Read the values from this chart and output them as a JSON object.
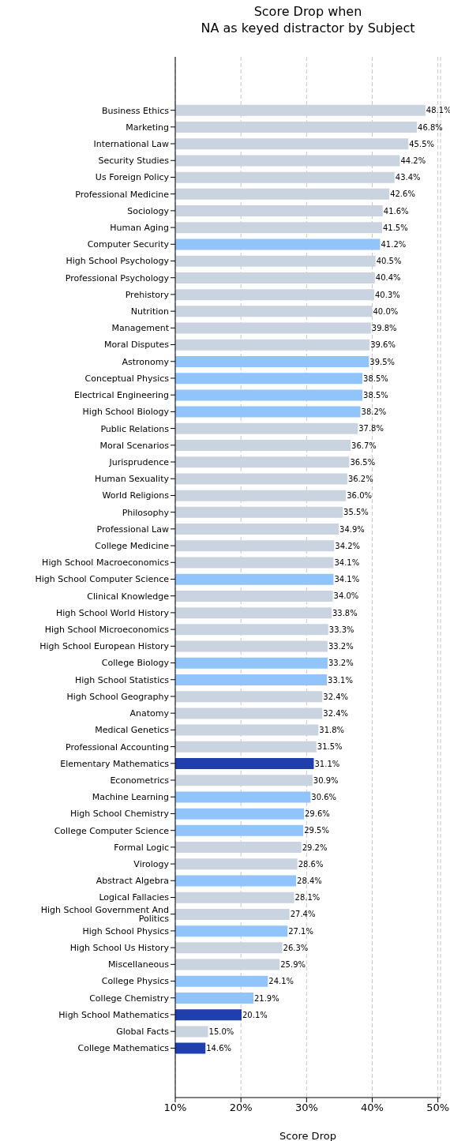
{
  "chart_data": {
    "type": "bar",
    "orientation": "horizontal",
    "title": "Score Drop when\nNA as keyed distractor by Subject",
    "xlabel": "Score Drop",
    "categories": [
      "Business Ethics",
      "Marketing",
      "International Law",
      "Security Studies",
      "Us Foreign Policy",
      "Professional Medicine",
      "Sociology",
      "Human Aging",
      "Computer Security",
      "High School Psychology",
      "Professional Psychology",
      "Prehistory",
      "Nutrition",
      "Management",
      "Moral Disputes",
      "Astronomy",
      "Conceptual Physics",
      "Electrical Engineering",
      "High School Biology",
      "Public Relations",
      "Moral Scenarios",
      "Jurisprudence",
      "Human Sexuality",
      "World Religions",
      "Philosophy",
      "Professional Law",
      "College Medicine",
      "High School Macroeconomics",
      "High School Computer Science",
      "Clinical Knowledge",
      "High School World History",
      "High School Microeconomics",
      "High School European History",
      "College Biology",
      "High School Statistics",
      "High School Geography",
      "Anatomy",
      "Medical Genetics",
      "Professional Accounting",
      "Elementary Mathematics",
      "Econometrics",
      "Machine Learning",
      "High School Chemistry",
      "College Computer Science",
      "Formal Logic",
      "Virology",
      "Abstract Algebra",
      "Logical Fallacies",
      "High School Government And Politics",
      "High School Physics",
      "High School Us History",
      "Miscellaneous",
      "College Physics",
      "College Chemistry",
      "High School Mathematics",
      "Global Facts",
      "College Mathematics"
    ],
    "values": [
      48.1,
      46.8,
      45.5,
      44.2,
      43.4,
      42.6,
      41.6,
      41.5,
      41.2,
      40.5,
      40.4,
      40.3,
      40.0,
      39.8,
      39.6,
      39.5,
      38.5,
      38.5,
      38.2,
      37.8,
      36.7,
      36.5,
      36.2,
      36.0,
      35.5,
      34.9,
      34.2,
      34.1,
      34.1,
      34.0,
      33.8,
      33.3,
      33.2,
      33.2,
      33.1,
      32.4,
      32.4,
      31.8,
      31.5,
      31.1,
      30.9,
      30.6,
      29.6,
      29.5,
      29.2,
      28.6,
      28.4,
      28.1,
      27.4,
      27.1,
      26.3,
      25.9,
      24.1,
      21.9,
      20.1,
      15.0,
      14.6
    ],
    "value_labels": [
      "48.1%",
      "46.8%",
      "45.5%",
      "44.2%",
      "43.4%",
      "42.6%",
      "41.6%",
      "41.5%",
      "41.2%",
      "40.5%",
      "40.4%",
      "40.3%",
      "40.0%",
      "39.8%",
      "39.6%",
      "39.5%",
      "38.5%",
      "38.5%",
      "38.2%",
      "37.8%",
      "36.7%",
      "36.5%",
      "36.2%",
      "36.0%",
      "35.5%",
      "34.9%",
      "34.2%",
      "34.1%",
      "34.1%",
      "34.0%",
      "33.8%",
      "33.3%",
      "33.2%",
      "33.2%",
      "33.1%",
      "32.4%",
      "32.4%",
      "31.8%",
      "31.5%",
      "31.1%",
      "30.9%",
      "30.6%",
      "29.6%",
      "29.5%",
      "29.2%",
      "28.6%",
      "28.4%",
      "28.1%",
      "27.4%",
      "27.1%",
      "26.3%",
      "25.9%",
      "24.1%",
      "21.9%",
      "20.1%",
      "15.0%",
      "14.6%"
    ],
    "colors": [
      "#c9d4e0",
      "#c9d4e0",
      "#c9d4e0",
      "#c9d4e0",
      "#c9d4e0",
      "#c9d4e0",
      "#c9d4e0",
      "#c9d4e0",
      "#90c4fa",
      "#c9d4e0",
      "#c9d4e0",
      "#c9d4e0",
      "#c9d4e0",
      "#c9d4e0",
      "#c9d4e0",
      "#90c4fa",
      "#90c4fa",
      "#90c4fa",
      "#90c4fa",
      "#c9d4e0",
      "#c9d4e0",
      "#c9d4e0",
      "#c9d4e0",
      "#c9d4e0",
      "#c9d4e0",
      "#c9d4e0",
      "#c9d4e0",
      "#c9d4e0",
      "#90c4fa",
      "#c9d4e0",
      "#c9d4e0",
      "#c9d4e0",
      "#c9d4e0",
      "#90c4fa",
      "#90c4fa",
      "#c9d4e0",
      "#c9d4e0",
      "#c9d4e0",
      "#c9d4e0",
      "#1f3fae",
      "#c9d4e0",
      "#90c4fa",
      "#90c4fa",
      "#90c4fa",
      "#c9d4e0",
      "#c9d4e0",
      "#90c4fa",
      "#c9d4e0",
      "#c9d4e0",
      "#90c4fa",
      "#c9d4e0",
      "#c9d4e0",
      "#90c4fa",
      "#90c4fa",
      "#1f3fae",
      "#c9d4e0",
      "#1f3fae"
    ],
    "xlim": [
      10,
      50.4
    ],
    "xticks": [
      {
        "value": 10,
        "label": "10%"
      },
      {
        "value": 20,
        "label": "20%"
      },
      {
        "value": 30,
        "label": "30%"
      },
      {
        "value": 40,
        "label": "40%"
      },
      {
        "value": 50,
        "label": "50%"
      }
    ],
    "grid": "x"
  }
}
